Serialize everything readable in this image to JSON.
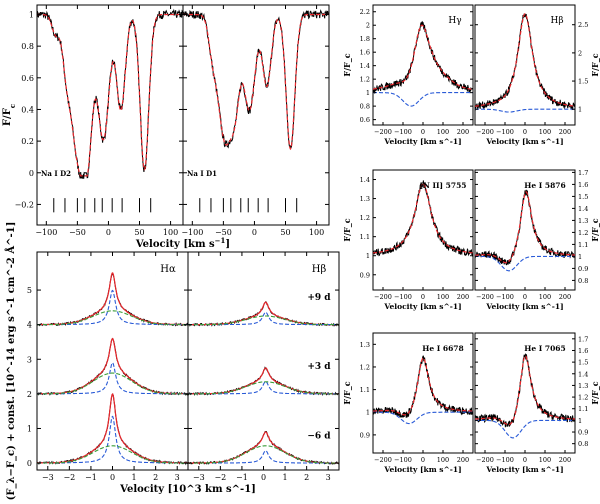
{
  "chart_data": [
    {
      "id": "nad",
      "type": "line",
      "ylabel": "F/F_c",
      "xlabel": "Velocity [km s^-1]",
      "xlim": [
        -115,
        120
      ],
      "ylim": [
        -0.33,
        1.06
      ],
      "yticks": [
        -0.2,
        0,
        0.2,
        0.4,
        0.6,
        0.8,
        1
      ],
      "xticks": [
        -100,
        -50,
        0,
        50,
        100
      ],
      "subpanels": [
        {
          "label": "Na I D2",
          "lines": [
            -88,
            -70,
            -50,
            -38,
            -22,
            -10,
            6,
            22,
            50,
            68
          ],
          "components": [
            [
              -47,
              0.95,
              13
            ],
            [
              -32,
              0.45,
              7
            ],
            [
              -8,
              0.78,
              9
            ],
            [
              20,
              0.6,
              7
            ],
            [
              58,
              0.98,
              7
            ],
            [
              -85,
              0.12,
              6
            ],
            [
              -68,
              0.2,
              6
            ]
          ]
        },
        {
          "label": "Na I D1",
          "lines": [
            -88,
            -70,
            -50,
            -38,
            -22,
            -10,
            6,
            22,
            50,
            68
          ],
          "components": [
            [
              -47,
              0.8,
              12
            ],
            [
              -30,
              0.35,
              7
            ],
            [
              -8,
              0.6,
              9
            ],
            [
              20,
              0.45,
              7
            ],
            [
              58,
              0.85,
              7
            ],
            [
              -68,
              0.15,
              6
            ]
          ]
        }
      ]
    },
    {
      "id": "halpha_hbeta",
      "type": "line",
      "ylabel": "(F_λ−F_c) + const. [10^-14 erg s^-1 cm^-2 Å^-1]",
      "xlabel": "Velocity [10^3 km s^-1]",
      "xlim": [
        -3.5,
        3.5
      ],
      "ylim": [
        -0.2,
        6.1
      ],
      "yticks": [
        0,
        1,
        2,
        3,
        4,
        5
      ],
      "xticks": [
        -3,
        -2,
        -1,
        0,
        1,
        2,
        3
      ],
      "subpanels": [
        {
          "label": "Hα",
          "epochs": [
            {
              "offset": 4,
              "peak": 1.5,
              "center": 0.0,
              "broad": 0.4,
              "narrow": 1.1
            },
            {
              "offset": 2,
              "peak": 1.6,
              "center": 0.0,
              "broad": 0.6,
              "narrow": 1.0
            },
            {
              "offset": 0,
              "peak": 2.0,
              "center": 0.0,
              "broad": 0.5,
              "narrow": 1.5
            }
          ]
        },
        {
          "label": "Hβ",
          "epochs": [
            {
              "offset": 4,
              "peak": 0.65,
              "center": 0.1,
              "broad": 0.25,
              "narrow": 0.4
            },
            {
              "offset": 2,
              "peak": 0.75,
              "center": 0.1,
              "broad": 0.35,
              "narrow": 0.4
            },
            {
              "offset": 0,
              "peak": 0.9,
              "center": 0.1,
              "broad": 0.5,
              "narrow": 0.4
            }
          ],
          "epoch_labels": [
            "+9 d",
            "+3 d",
            "−6 d"
          ]
        }
      ]
    },
    {
      "id": "lines_grid",
      "type": "line",
      "ylabel": "F/F_c",
      "xlabel": "Velocity [km s^-1]",
      "xlim": [
        -250,
        250
      ],
      "xticks": [
        -200,
        -100,
        0,
        100,
        200
      ],
      "panels": [
        {
          "label": "Hγ",
          "side": "left",
          "ylim": [
            0.52,
            2.3
          ],
          "yticks": [
            0.6,
            0.8,
            1,
            1.2,
            1.4,
            1.6,
            1.8,
            2,
            2.2
          ],
          "peak": 2.05,
          "center": -10,
          "width": 55,
          "dip": -0.2,
          "dipc": -60,
          "tail": 0.1
        },
        {
          "label": "Hβ",
          "side": "right",
          "ylim": [
            0.72,
            2.85
          ],
          "yticks": [
            1,
            1.5,
            2,
            2.5
          ],
          "peak": 2.7,
          "center": 0,
          "width": 45,
          "dip": -0.05,
          "dipc": -80,
          "tail": 0.0
        },
        {
          "label": "[N II] 5755",
          "side": "left",
          "ylim": [
            0.82,
            1.45
          ],
          "yticks": [
            0.9,
            1,
            1.1,
            1.2,
            1.3,
            1.4
          ],
          "peak": 1.38,
          "center": 0,
          "width": 50,
          "dip": 0,
          "dipc": 0,
          "tail": 0.0
        },
        {
          "label": "He I 5876",
          "side": "right",
          "ylim": [
            0.72,
            1.72
          ],
          "yticks": [
            0.8,
            0.9,
            1,
            1.1,
            1.2,
            1.3,
            1.4,
            1.5,
            1.6,
            1.7
          ],
          "peak": 1.55,
          "center": 5,
          "width": 35,
          "dip": -0.12,
          "dipc": -80,
          "tail": 0.0
        },
        {
          "label": "He I 6678",
          "side": "left",
          "ylim": [
            0.82,
            1.35
          ],
          "yticks": [
            0.9,
            1,
            1.1,
            1.2,
            1.3
          ],
          "peak": 1.25,
          "center": 0,
          "width": 35,
          "dip": -0.05,
          "dipc": -70,
          "tail": 0.0
        },
        {
          "label": "He I 7065",
          "side": "right",
          "ylim": [
            0.72,
            1.75
          ],
          "yticks": [
            0.8,
            0.9,
            1,
            1.1,
            1.2,
            1.3,
            1.4,
            1.5,
            1.6,
            1.7
          ],
          "peak": 1.6,
          "center": 0,
          "width": 35,
          "dip": -0.15,
          "dipc": -60,
          "tail": 0.0
        }
      ]
    }
  ],
  "colors": {
    "data": "#000000",
    "fit": "#e8262b",
    "narrow": "#2a5bd7",
    "broad": "#3a9d3a"
  }
}
